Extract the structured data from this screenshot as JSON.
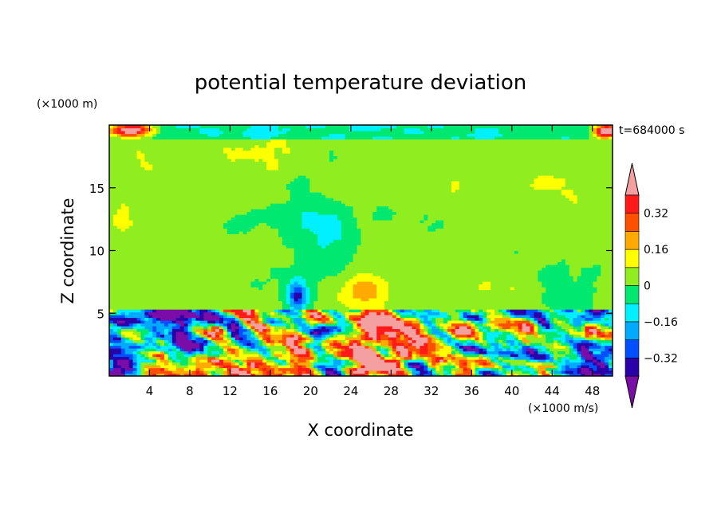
{
  "chart_data": {
    "type": "heatmap",
    "title": "potential temperature deviation",
    "xlabel": "X coordinate",
    "ylabel": "Z coordinate",
    "x_unit": "(×1000 m/s)",
    "y_unit": "(×1000 m)",
    "time_label": "t=684000 s",
    "xlim": [
      0,
      50
    ],
    "ylim": [
      0,
      20
    ],
    "x_ticks": [
      4,
      8,
      12,
      16,
      20,
      24,
      28,
      32,
      36,
      40,
      44,
      48
    ],
    "y_ticks": [
      5,
      10,
      15
    ],
    "colorbar": {
      "levels": [
        -0.4,
        -0.32,
        -0.24,
        -0.16,
        -0.08,
        0,
        0.08,
        0.16,
        0.24,
        0.32,
        0.4
      ],
      "labeled": [
        0.32,
        0.16,
        0,
        -0.16,
        -0.32
      ],
      "tick_labels": [
        "0.32",
        "0.16",
        "0",
        "−0.16",
        "−0.32"
      ],
      "colors": [
        "#7a0da8",
        "#2a00a8",
        "#0050ff",
        "#00aaff",
        "#00f0ff",
        "#00e870",
        "#90ee20",
        "#ffff00",
        "#ffaa00",
        "#ff5000",
        "#ff1a1a",
        "#f4a0a0"
      ]
    }
  }
}
